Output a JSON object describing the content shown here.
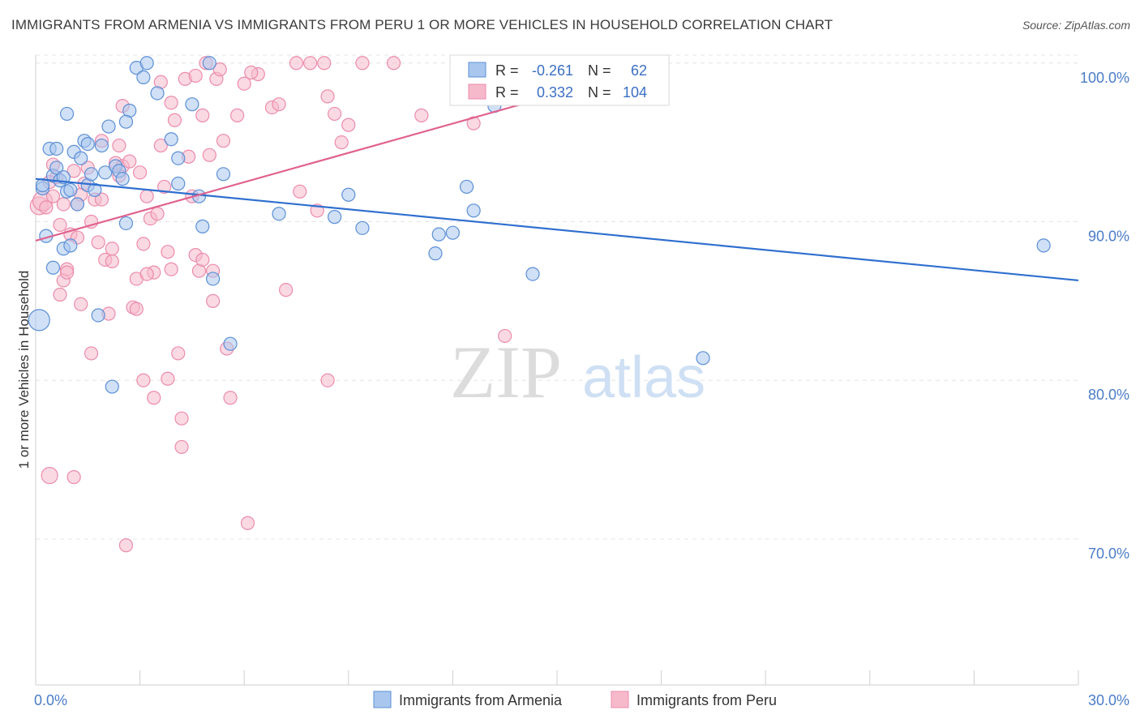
{
  "header": {
    "title": "IMMIGRANTS FROM ARMENIA VS IMMIGRANTS FROM PERU 1 OR MORE VEHICLES IN HOUSEHOLD CORRELATION CHART",
    "source": "Source: ZipAtlas.com"
  },
  "watermark": {
    "zip": "ZIP",
    "atlas": "atlas"
  },
  "colors": {
    "armenia_fill": "#a9c7ee",
    "armenia_stroke": "#5b8fd6",
    "armenia_line": "#2f6fcf",
    "peru_fill": "#f6b9cc",
    "peru_stroke": "#ec8bab",
    "peru_line": "#e0628f",
    "tick_text": "#4a7cc8"
  },
  "chart_data": {
    "type": "scatter",
    "title": "IMMIGRANTS FROM ARMENIA VS IMMIGRANTS FROM PERU 1 OR MORE VEHICLES IN HOUSEHOLD CORRELATION CHART",
    "xlabel": "",
    "ylabel": "1 or more Vehicles in Household",
    "xlim": [
      0,
      30
    ],
    "ylim": [
      60.8,
      100.5
    ],
    "x_tick_labels": [
      "0.0%",
      "30.0%"
    ],
    "y_ticks": [
      70,
      80,
      90,
      100
    ],
    "y_tick_labels": [
      "70.0%",
      "80.0%",
      "90.0%",
      "100.0%"
    ],
    "grid": true,
    "legend_position": "bottom-center",
    "stats": [
      {
        "label_r": "R =",
        "r": "-0.261",
        "label_n": "N =",
        "n": "62"
      },
      {
        "label_r": "R =",
        "r": "0.332",
        "label_n": "N =",
        "n": "104"
      }
    ],
    "series": [
      {
        "name": "Immigrants from Armenia",
        "trend": {
          "x": [
            0,
            30
          ],
          "y": [
            92.7,
            86.3
          ]
        },
        "points": [
          [
            0.2,
            92.1
          ],
          [
            0.3,
            89.1
          ],
          [
            0.4,
            94.6
          ],
          [
            0.5,
            87.1
          ],
          [
            0.5,
            92.9
          ],
          [
            0.6,
            94.6
          ],
          [
            0.6,
            93.4
          ],
          [
            0.7,
            92.6
          ],
          [
            0.8,
            88.3
          ],
          [
            0.9,
            91.9
          ],
          [
            0.9,
            96.8
          ],
          [
            1.0,
            92.0
          ],
          [
            1.1,
            94.4
          ],
          [
            1.2,
            91.1
          ],
          [
            1.3,
            94.0
          ],
          [
            1.4,
            95.1
          ],
          [
            1.5,
            92.3
          ],
          [
            1.5,
            94.9
          ],
          [
            1.6,
            93.0
          ],
          [
            1.7,
            92.0
          ],
          [
            1.8,
            84.1
          ],
          [
            1.9,
            94.8
          ],
          [
            2.0,
            93.1
          ],
          [
            2.1,
            96.0
          ],
          [
            2.2,
            79.6
          ],
          [
            2.3,
            93.5
          ],
          [
            2.4,
            93.2
          ],
          [
            2.5,
            92.7
          ],
          [
            2.6,
            89.9
          ],
          [
            2.7,
            97.0
          ],
          [
            2.9,
            99.7
          ],
          [
            3.1,
            99.1
          ],
          [
            3.2,
            100.0
          ],
          [
            3.5,
            98.1
          ],
          [
            3.9,
            95.2
          ],
          [
            4.1,
            92.4
          ],
          [
            4.1,
            94.0
          ],
          [
            4.5,
            97.4
          ],
          [
            4.7,
            91.6
          ],
          [
            4.8,
            89.7
          ],
          [
            5.0,
            100.0
          ],
          [
            5.1,
            86.4
          ],
          [
            5.4,
            93.0
          ],
          [
            5.6,
            82.3
          ],
          [
            7.0,
            90.5
          ],
          [
            8.6,
            90.3
          ],
          [
            9.0,
            91.7
          ],
          [
            9.4,
            89.6
          ],
          [
            11.5,
            88.0
          ],
          [
            11.6,
            89.2
          ],
          [
            12.0,
            89.3
          ],
          [
            12.4,
            92.2
          ],
          [
            12.6,
            90.7
          ],
          [
            13.2,
            97.3
          ],
          [
            14.3,
            86.7
          ],
          [
            19.2,
            81.4
          ],
          [
            29.0,
            88.5
          ],
          [
            0.1,
            83.8
          ],
          [
            0.2,
            92.3
          ],
          [
            0.8,
            92.8
          ],
          [
            1.0,
            88.5
          ],
          [
            2.6,
            96.3
          ]
        ]
      },
      {
        "name": "Immigrants from Peru",
        "trend": {
          "x": [
            0,
            18.2
          ],
          "y": [
            88.8,
            100.0
          ]
        },
        "points": [
          [
            0.1,
            91.0
          ],
          [
            0.2,
            91.3
          ],
          [
            0.3,
            90.9
          ],
          [
            0.4,
            74.0
          ],
          [
            0.5,
            91.6
          ],
          [
            0.6,
            92.8
          ],
          [
            0.7,
            89.8
          ],
          [
            0.8,
            86.3
          ],
          [
            0.8,
            91.1
          ],
          [
            0.9,
            87.0
          ],
          [
            1.0,
            89.2
          ],
          [
            1.1,
            93.2
          ],
          [
            1.2,
            89.0
          ],
          [
            1.3,
            84.8
          ],
          [
            1.4,
            92.4
          ],
          [
            1.5,
            93.4
          ],
          [
            1.6,
            81.7
          ],
          [
            1.7,
            91.4
          ],
          [
            1.8,
            88.7
          ],
          [
            1.9,
            95.1
          ],
          [
            2.0,
            87.6
          ],
          [
            2.1,
            84.2
          ],
          [
            2.2,
            87.5
          ],
          [
            2.3,
            93.7
          ],
          [
            2.4,
            94.8
          ],
          [
            2.5,
            93.5
          ],
          [
            2.6,
            69.6
          ],
          [
            2.7,
            93.8
          ],
          [
            2.8,
            84.6
          ],
          [
            2.9,
            86.4
          ],
          [
            3.0,
            93.1
          ],
          [
            3.1,
            88.6
          ],
          [
            3.2,
            91.6
          ],
          [
            3.3,
            90.2
          ],
          [
            3.4,
            86.8
          ],
          [
            3.5,
            90.5
          ],
          [
            3.6,
            94.8
          ],
          [
            3.7,
            92.2
          ],
          [
            3.8,
            88.1
          ],
          [
            3.9,
            87.0
          ],
          [
            4.0,
            96.4
          ],
          [
            4.1,
            81.7
          ],
          [
            4.2,
            77.6
          ],
          [
            4.3,
            99.0
          ],
          [
            4.4,
            94.1
          ],
          [
            4.5,
            91.6
          ],
          [
            4.6,
            87.9
          ],
          [
            4.7,
            86.9
          ],
          [
            4.8,
            96.7
          ],
          [
            4.9,
            100.0
          ],
          [
            5.0,
            94.2
          ],
          [
            5.1,
            85.0
          ],
          [
            5.2,
            99.0
          ],
          [
            5.3,
            99.6
          ],
          [
            5.4,
            95.1
          ],
          [
            5.5,
            82.0
          ],
          [
            5.6,
            78.9
          ],
          [
            5.8,
            96.7
          ],
          [
            6.0,
            98.7
          ],
          [
            6.1,
            71.0
          ],
          [
            6.4,
            99.3
          ],
          [
            6.8,
            97.2
          ],
          [
            7.0,
            97.4
          ],
          [
            7.2,
            85.7
          ],
          [
            7.5,
            100.0
          ],
          [
            7.6,
            91.9
          ],
          [
            7.9,
            100.0
          ],
          [
            8.1,
            90.7
          ],
          [
            8.3,
            100.0
          ],
          [
            8.4,
            97.9
          ],
          [
            8.6,
            96.8
          ],
          [
            8.8,
            95.0
          ],
          [
            9.0,
            96.1
          ],
          [
            9.4,
            100.0
          ],
          [
            10.3,
            100.0
          ],
          [
            11.1,
            96.7
          ],
          [
            12.6,
            96.2
          ],
          [
            13.5,
            82.8
          ],
          [
            12.2,
            100.0
          ],
          [
            1.3,
            91.7
          ],
          [
            0.4,
            92.5
          ],
          [
            1.9,
            91.4
          ],
          [
            2.2,
            88.3
          ],
          [
            3.6,
            98.8
          ],
          [
            3.9,
            97.5
          ],
          [
            4.6,
            99.2
          ],
          [
            3.1,
            80.0
          ],
          [
            3.8,
            80.1
          ],
          [
            4.8,
            87.6
          ],
          [
            5.1,
            86.9
          ],
          [
            6.2,
            99.4
          ],
          [
            2.5,
            97.3
          ],
          [
            1.2,
            91.1
          ],
          [
            0.9,
            86.8
          ],
          [
            2.9,
            84.5
          ],
          [
            3.4,
            78.9
          ],
          [
            1.6,
            90.0
          ],
          [
            0.5,
            93.6
          ],
          [
            4.2,
            75.8
          ],
          [
            8.4,
            80.0
          ],
          [
            1.1,
            73.9
          ],
          [
            3.2,
            86.7
          ],
          [
            2.4,
            92.9
          ],
          [
            0.7,
            85.4
          ]
        ]
      }
    ]
  },
  "legend": {
    "armenia": "Immigrants from Armenia",
    "peru": "Immigrants from Peru"
  }
}
